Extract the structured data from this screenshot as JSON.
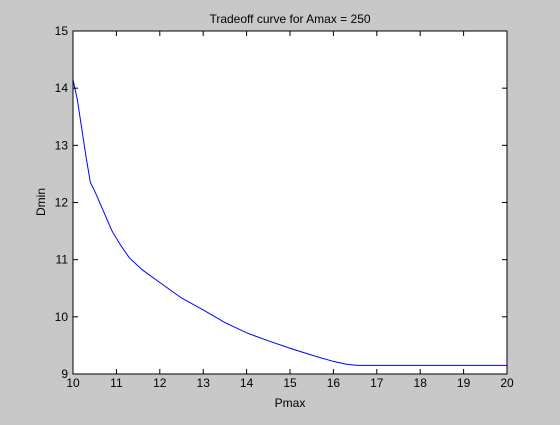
{
  "chart_data": {
    "type": "line",
    "title": "Tradeoff curve for Amax = 250",
    "xlabel": "Pmax",
    "ylabel": "Dmin",
    "xlim": [
      10,
      20
    ],
    "ylim": [
      9,
      15
    ],
    "xticks": [
      10,
      11,
      12,
      13,
      14,
      15,
      16,
      17,
      18,
      19,
      20
    ],
    "yticks": [
      9,
      10,
      11,
      12,
      13,
      14,
      15
    ],
    "grid": false,
    "legend": "none",
    "series": [
      {
        "color": "#0000ff",
        "x": [
          10.0,
          10.1,
          10.2,
          10.3,
          10.4,
          10.5,
          10.7,
          10.9,
          11.1,
          11.3,
          11.6,
          12.0,
          12.5,
          13.0,
          13.5,
          14.0,
          14.5,
          15.0,
          15.5,
          16.0,
          16.3,
          16.55,
          16.7,
          17.0,
          18.0,
          19.0,
          20.0
        ],
        "y": [
          14.15,
          13.8,
          13.3,
          12.8,
          12.35,
          12.2,
          11.85,
          11.5,
          11.25,
          11.03,
          10.82,
          10.6,
          10.33,
          10.12,
          9.9,
          9.72,
          9.58,
          9.45,
          9.33,
          9.22,
          9.17,
          9.15,
          9.15,
          9.15,
          9.15,
          9.15,
          9.15
        ]
      }
    ]
  }
}
